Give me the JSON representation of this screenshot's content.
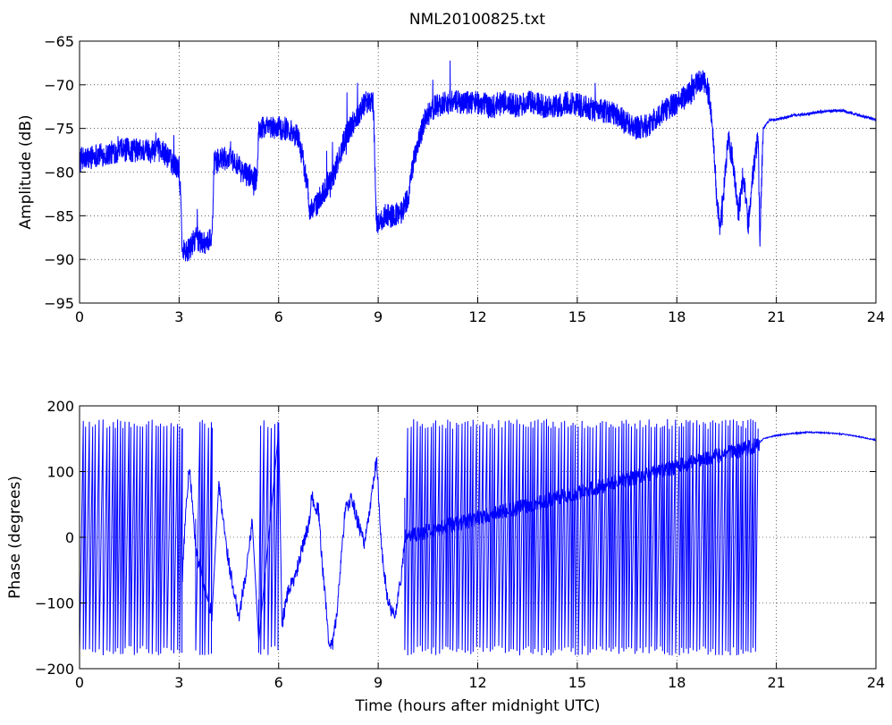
{
  "figure": {
    "title": "NML20100825.txt"
  },
  "chart_data": [
    {
      "type": "line",
      "title": "NML20100825.txt",
      "xlabel": "",
      "ylabel": "Amplitude (dB)",
      "xlim": [
        0,
        24
      ],
      "ylim": [
        -95,
        -65
      ],
      "xticks": [
        0,
        3,
        6,
        9,
        12,
        15,
        18,
        21,
        24
      ],
      "yticks": [
        -95,
        -90,
        -85,
        -80,
        -75,
        -70,
        -65
      ],
      "grid": true,
      "line_color": "#0000ff",
      "series": [
        {
          "x": [
            0,
            0.05,
            0.2,
            0.5,
            0.8,
            1.2,
            1.6,
            2.0,
            2.4,
            2.6,
            2.8,
            3.0,
            3.05,
            3.1,
            3.3,
            3.5,
            3.7,
            3.9,
            4.0,
            4.05,
            4.3,
            4.6,
            4.9,
            5.2,
            5.35,
            5.4,
            5.7,
            6.0,
            6.3,
            6.6,
            6.8,
            6.95,
            7.1,
            7.4,
            7.7,
            8.0,
            8.3,
            8.6,
            8.85,
            8.95,
            9.2,
            9.5,
            9.7,
            9.9,
            10.1,
            10.4,
            10.7,
            11.0,
            11.3,
            11.6,
            12.0,
            12.4,
            12.8,
            13.2,
            13.6,
            14.0,
            14.4,
            14.8,
            15.2,
            15.6,
            16.0,
            16.4,
            16.8,
            17.2,
            17.6,
            18.0,
            18.4,
            18.7,
            18.9,
            19.0,
            19.1,
            19.2,
            19.3,
            19.4,
            19.55,
            19.7,
            19.85,
            20.0,
            20.15,
            20.3,
            20.45,
            20.5,
            20.6,
            20.8,
            21.0,
            21.5,
            22.0,
            22.5,
            23.0,
            23.5,
            24.0
          ],
          "y": [
            -79,
            -78.5,
            -78.5,
            -78,
            -78,
            -77.5,
            -77.5,
            -77.5,
            -77.5,
            -78,
            -79,
            -79.5,
            -83,
            -89,
            -89,
            -87.5,
            -88,
            -88,
            -87,
            -79,
            -78.5,
            -78.5,
            -80,
            -80.5,
            -81,
            -75,
            -75,
            -75,
            -75,
            -76,
            -80,
            -84.5,
            -84,
            -82,
            -80,
            -76,
            -74,
            -72,
            -72,
            -86,
            -85,
            -85,
            -84.5,
            -83,
            -78,
            -74,
            -72.5,
            -72,
            -72,
            -72,
            -72,
            -72.5,
            -72,
            -72.5,
            -72,
            -72.5,
            -72.5,
            -72,
            -72.5,
            -73,
            -73,
            -74,
            -75,
            -74.5,
            -73,
            -72,
            -71,
            -69.5,
            -70,
            -72,
            -76,
            -83,
            -86,
            -83,
            -76,
            -79,
            -85,
            -80,
            -86,
            -80,
            -76,
            -88,
            -75,
            -74,
            -74,
            -73.5,
            -73.3,
            -73,
            -73,
            -73.5,
            -74
          ]
        }
      ]
    },
    {
      "type": "line",
      "title": "",
      "xlabel": "Time (hours after midnight UTC)",
      "ylabel": "Phase (degrees)",
      "xlim": [
        0,
        24
      ],
      "ylim": [
        -200,
        200
      ],
      "xticks": [
        0,
        3,
        6,
        9,
        12,
        15,
        18,
        21,
        24
      ],
      "yticks": [
        -200,
        -100,
        0,
        100,
        200
      ],
      "grid": true,
      "line_color": "#0000ff",
      "wrap_segments": [
        [
          0,
          3.1,
          0.09
        ],
        [
          3.5,
          4.0,
          0.1
        ],
        [
          5.4,
          6.0,
          0.09
        ],
        [
          9.8,
          20.45,
          0.085
        ]
      ],
      "series": [
        {
          "x": [
            3.1,
            3.2,
            3.3,
            3.4,
            3.5,
            4.0,
            4.2,
            4.5,
            4.8,
            5.0,
            5.2,
            5.4,
            6.0,
            6.1,
            6.3,
            6.5,
            6.7,
            6.9,
            7.0,
            7.2,
            7.3,
            7.5,
            7.6,
            7.75,
            7.9,
            8.0,
            8.2,
            8.4,
            8.6,
            8.8,
            8.95,
            9.1,
            9.3,
            9.5,
            9.7,
            9.8,
            20.45,
            20.6,
            21.0,
            21.5,
            22.0,
            22.5,
            23.0,
            23.5,
            24.0
          ],
          "y": [
            -60,
            40,
            100,
            60,
            -20,
            -120,
            80,
            -40,
            -120,
            -60,
            20,
            -150,
            170,
            -130,
            -80,
            -60,
            -20,
            20,
            60,
            40,
            -30,
            -150,
            -170,
            -120,
            -20,
            40,
            60,
            20,
            -10,
            60,
            120,
            -20,
            -100,
            -120,
            -60,
            0,
            140,
            150,
            155,
            158,
            160,
            159,
            157,
            153,
            148
          ]
        }
      ]
    }
  ]
}
